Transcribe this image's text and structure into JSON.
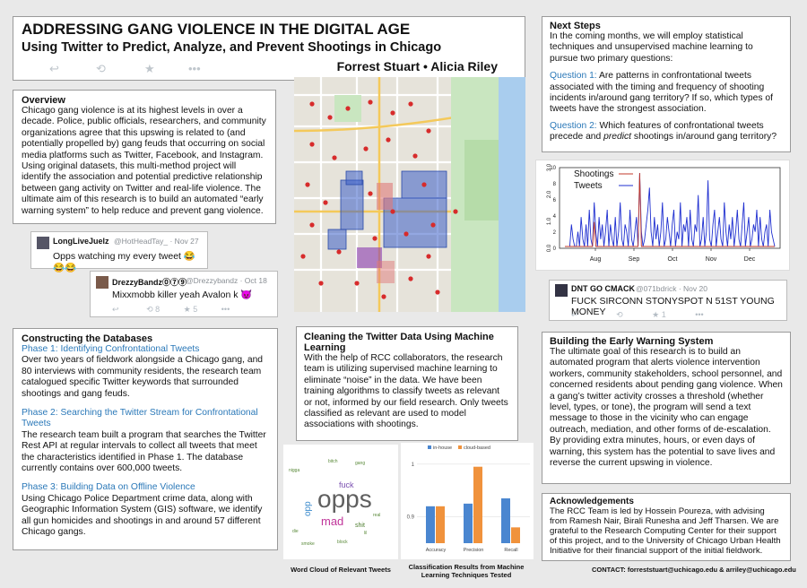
{
  "header": {
    "title": "ADDRESSING GANG VIOLENCE IN THE DIGITAL AGE",
    "subtitle": "Using Twitter to Predict, Analyze, and Prevent Shootings in Chicago",
    "authors": "Forrest Stuart • Alicia Riley"
  },
  "overview": {
    "heading": "Overview",
    "body": "Chicago gang violence is at its highest levels in over a decade. Police, public officials, researchers, and community organizations agree that this upswing is related to (and potentially propelled by) gang feuds that occurring on social media platforms such as Twitter, Facebook, and Instagram. Using original datasets, this multi-method project will identify the association and potential predictive relationship between gang activity on Twitter and real-life violence. The ultimate aim of this research is to build an automated “early warning system” to help reduce and prevent gang violence."
  },
  "tweets": [
    {
      "name": "LongLiveJuelz",
      "handle": "@HotHeadTay_ · Nov 27",
      "text": "Opps watching my every tweet 😂😂😂"
    },
    {
      "name": "DrezzyBandz⓪⑦⑨",
      "handle": "@Drezzybandz · Oct 18",
      "text": "Mixxmobb killer yeah Avalon k 😈",
      "retweets": "8",
      "likes": "5"
    },
    {
      "name": "DNT GO CMACK",
      "handle": "@071bdrick · Nov 20",
      "text": "FUCK SIRCONN STONYSPOT N 51ST YOUNG MONEY",
      "likes": "1"
    }
  ],
  "next_steps": {
    "heading": "Next Steps",
    "intro": "In the coming months, we will employ statistical techniques and unsupervised machine learning to pursue two primary questions:",
    "q1_label": "Question 1:",
    "q1_text": "Are patterns in confrontational tweets associated with the timing and frequency of shooting incidents in/around gang territory? If so, which types of tweets have the strongest association.",
    "q2_label": "Question 2:",
    "q2_text_a": "Which features of confrontational tweets precede and",
    "q2_text_em": "predict",
    "q2_text_b": "shootings in/around gang territory?"
  },
  "constructing": {
    "heading": "Constructing the Databases",
    "p1_title": "Phase 1: Identifying Confrontational Tweets",
    "p1_body": "Over two years of fieldwork alongside a Chicago gang, and 80 interviews with community residents, the research team catalogued specific Twitter keywords that surrounded shootings and gang feuds.",
    "p2_title": "Phase 2: Searching the Twitter Stream for Confrontational Tweets",
    "p2_body": "The research team built a program that searches the Twitter Rest API at regular intervals to collect all tweets that meet the characteristics identified in Phase 1. The database currently contains over 600,000 tweets.",
    "p3_title": "Phase 3: Building Data on Offline Violence",
    "p3_body": "Using Chicago Police Department crime data, along with Geographic Information System (GIS) software, we identify all gun homicides and shootings in and around 57 different Chicago gangs."
  },
  "cleaning": {
    "heading": "Cleaning the Twitter Data Using Machine Learning",
    "body": "With the help of RCC collaborators, the research team is utilizing supervised machine learning to eliminate “noise” in the data. We have been training algorithms to classify tweets as relevant or not, informed by our field research. Only tweets classified as relevant are used to model associations with shootings."
  },
  "early_warning": {
    "heading": "Building the Early Warning System",
    "body": "The ultimate goal of this research is to build an automated program that alerts violence intervention workers, community stakeholders, school personnel, and concerned residents about pending gang violence. When a gang’s twitter activity crosses a threshold (whether level, types, or tone), the program will send a text message to those in the vicinity who can engage outreach, mediation, and other forms of de-escalation. By providing extra minutes, hours, or even days of warning, this system has the potential to save lives and reverse the current upswing in violence."
  },
  "acknowledgements": {
    "heading": "Acknowledgements",
    "body": "The RCC Team is led by Hossein Poureza, with advising from Ramesh Nair, Birali Runesha and Jeff Tharsen. We are grateful to the Research Computing Center for their support of this project, and to the University of Chicago Urban Health Initiative for their financial support of the initial fieldwork."
  },
  "contact": "CONTACT: forreststuart@uchicago.edu & arriley@uchicago.edu",
  "wordcloud": {
    "caption": "Word Cloud of Relevant Tweets",
    "words": [
      "opps",
      "mad",
      "fuck",
      "opp",
      "shit",
      "bitch",
      "nigga",
      "gang",
      "die",
      "lil",
      "block",
      "smoke",
      "real"
    ]
  },
  "classification_caption": "Classification Results from Machine Learning Techniques Tested",
  "chart_data": [
    {
      "type": "line",
      "legend": [
        "Shootings",
        "Tweets"
      ],
      "colors": {
        "Shootings": "#c0392b",
        "Tweets": "#1f2fd0"
      },
      "xticks": [
        "Aug",
        "Sep",
        "Oct",
        "Nov",
        "Dec"
      ],
      "yticks_left": [
        "0.0",
        "1.0",
        "2.0",
        "3.0"
      ],
      "yticks_right": [
        "0",
        "2",
        "4",
        "6",
        "8",
        "10"
      ],
      "tweets": [
        0,
        0,
        0,
        0,
        3,
        1,
        0,
        0,
        2,
        0,
        4,
        1,
        0,
        3,
        0,
        5,
        1,
        0,
        6,
        2,
        0,
        4,
        1,
        3,
        0,
        2,
        5,
        0,
        3,
        1,
        0,
        4,
        0,
        2,
        6,
        1,
        0,
        3,
        2,
        0,
        5,
        1,
        0,
        2,
        4,
        0,
        10,
        2,
        0,
        1,
        3,
        5,
        8,
        2,
        0,
        4,
        1,
        3,
        0,
        2,
        6,
        0,
        1,
        4,
        2,
        0,
        3,
        5,
        0,
        2,
        1,
        6,
        0,
        3,
        2,
        4,
        0,
        5,
        1,
        0,
        3,
        2,
        7,
        0,
        1,
        4,
        0,
        2,
        9,
        1,
        0,
        3,
        5,
        0,
        2,
        4,
        1,
        0,
        6,
        2,
        0,
        3,
        1,
        4,
        0,
        2,
        5,
        1,
        0,
        3,
        6,
        0,
        2,
        4,
        0,
        1,
        3,
        2,
        5,
        0,
        4,
        1,
        0,
        2,
        3,
        0,
        5,
        2,
        1,
        0
      ],
      "shootings": [
        0,
        0,
        0,
        0,
        0,
        0,
        0,
        0,
        0,
        0,
        0,
        0,
        0,
        0,
        0,
        0,
        0,
        0,
        1,
        0,
        0,
        0,
        0,
        0,
        0,
        0,
        0,
        0,
        0,
        0,
        0,
        0,
        0,
        0,
        0,
        0,
        0,
        0,
        0,
        0,
        0,
        0,
        0,
        0,
        0,
        0,
        3,
        0,
        0,
        0,
        0,
        0,
        0,
        0,
        0,
        0,
        0,
        0,
        0,
        0,
        0,
        0,
        0,
        0,
        0,
        0,
        0,
        0,
        0,
        0,
        0,
        0,
        0,
        0,
        0,
        0,
        0,
        0,
        0,
        0,
        0,
        0,
        0,
        0,
        0,
        0,
        0,
        0,
        0,
        0,
        0,
        0,
        0,
        0,
        0,
        0,
        0,
        0,
        0,
        0,
        0,
        0,
        0,
        0,
        0,
        0,
        0,
        0,
        0,
        0,
        0,
        0,
        0,
        0,
        0,
        0,
        0,
        0,
        0,
        0,
        0,
        0,
        0,
        0,
        0,
        0,
        0,
        0,
        0,
        0
      ]
    },
    {
      "type": "bar",
      "legend": [
        "in-house",
        "cloud-based"
      ],
      "colors": {
        "in-house": "#4a86d0",
        "cloud-based": "#f0923c"
      },
      "categories": [
        "Accuracy",
        "Precision",
        "Recall"
      ],
      "series": [
        {
          "name": "in-house",
          "values": [
            0.92,
            0.925,
            0.935
          ]
        },
        {
          "name": "cloud-based",
          "values": [
            0.92,
            0.995,
            0.88
          ]
        }
      ],
      "yticks": [
        "0.9",
        "1"
      ],
      "ylim": [
        0.85,
        1.02
      ]
    }
  ]
}
